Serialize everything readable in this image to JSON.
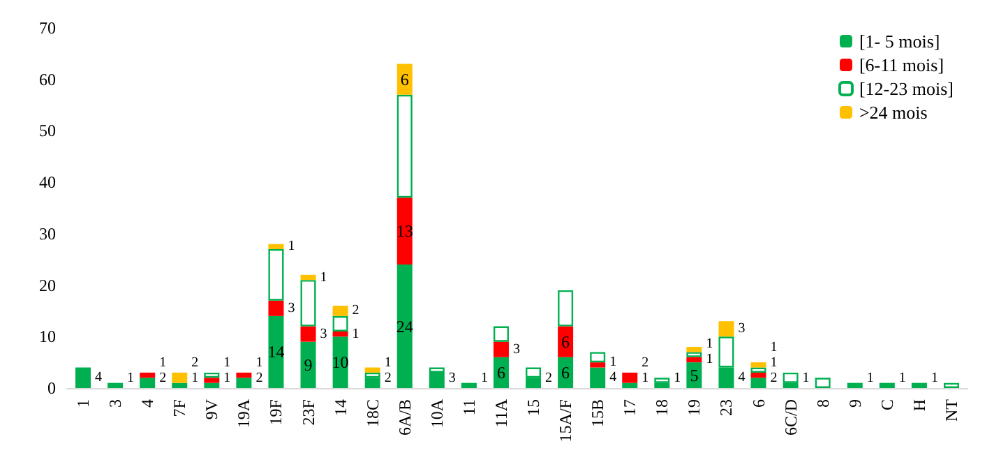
{
  "chart_data": {
    "type": "bar",
    "stacked": true,
    "categories": [
      "1",
      "3",
      "4",
      "7F",
      "9V",
      "19A",
      "19F",
      "23F",
      "14",
      "18C",
      "6A/B",
      "10A",
      "11",
      "11A",
      "15",
      "15A/F",
      "15B",
      "17",
      "18",
      "19",
      "23",
      "6",
      "6C/D",
      "8",
      "9",
      "C",
      "H",
      "NT"
    ],
    "series": [
      {
        "name": "[1- 5 mois]",
        "color": "#00b050",
        "values": [
          4,
          1,
          2,
          1,
          1,
          2,
          14,
          9,
          10,
          2,
          24,
          3,
          1,
          6,
          2,
          6,
          4,
          1,
          1,
          5,
          4,
          2,
          1,
          null,
          1,
          1,
          1,
          null
        ],
        "value_labels": [
          "4",
          "1",
          "2",
          "1",
          "1",
          "2",
          "14",
          "9",
          "10",
          "2",
          "24",
          "3",
          "1",
          "6",
          "2",
          "6",
          "4",
          "1",
          "1",
          "5",
          "4",
          "2",
          "1",
          null,
          "1",
          "1",
          "1",
          null
        ]
      },
      {
        "name": "[6-11 mois]",
        "color": "#ff0000",
        "values": [
          null,
          null,
          1,
          null,
          1,
          1,
          3,
          3,
          1,
          null,
          13,
          null,
          null,
          3,
          null,
          6,
          1,
          2,
          null,
          1,
          null,
          1,
          null,
          null,
          null,
          null,
          null,
          null
        ],
        "value_labels": [
          null,
          null,
          "1",
          null,
          "1",
          "1",
          "3",
          "3",
          "1",
          null,
          "13",
          null,
          null,
          "3",
          null,
          "6",
          "1",
          "2",
          null,
          "1",
          null,
          "1",
          null,
          null,
          null,
          null,
          null,
          null
        ]
      },
      {
        "name": "[12-23 mois]",
        "color": "#00b050",
        "values": [
          null,
          null,
          null,
          null,
          1,
          null,
          10,
          9,
          3,
          1,
          20,
          1,
          null,
          3,
          2,
          7,
          2,
          null,
          1,
          1,
          6,
          1,
          2,
          2,
          null,
          null,
          null,
          1
        ]
      },
      {
        "name": ">24 mois",
        "color": "#ffc000",
        "values": [
          null,
          null,
          null,
          2,
          null,
          null,
          1,
          1,
          2,
          1,
          6,
          null,
          null,
          null,
          null,
          null,
          null,
          null,
          null,
          1,
          3,
          1,
          null,
          null,
          null,
          null,
          null,
          null
        ],
        "value_labels": [
          null,
          null,
          null,
          "2",
          null,
          null,
          "1",
          "1",
          "2",
          "1",
          "6",
          null,
          null,
          null,
          null,
          null,
          null,
          null,
          null,
          "1",
          "3",
          "1",
          null,
          null,
          null,
          null,
          null,
          null
        ]
      }
    ],
    "ylim": [
      0,
      70
    ],
    "yticks": [
      0,
      10,
      20,
      30,
      40,
      50,
      60,
      70
    ],
    "grid": false,
    "legend": "top right"
  }
}
